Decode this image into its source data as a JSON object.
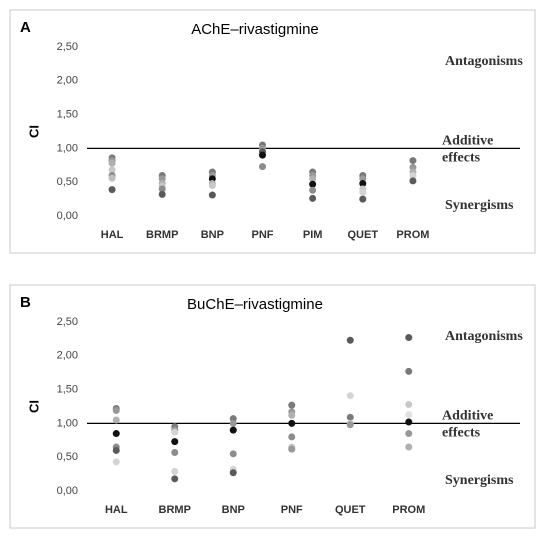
{
  "chart_data": [
    {
      "type": "strip",
      "panel": "A",
      "title": "AChE–rivastigmine",
      "ylabel": "CI",
      "categories": [
        "HAL",
        "BRMP",
        "BNP",
        "PNF",
        "PIM",
        "QUET",
        "PROM"
      ],
      "points": [
        [
          {
            "y": 0.86,
            "color": "#7a7a7a"
          },
          {
            "y": 0.82,
            "color": "#999999"
          },
          {
            "y": 0.78,
            "color": "#b0b0b0"
          },
          {
            "y": 0.68,
            "color": "#c8c8c8"
          },
          {
            "y": 0.6,
            "color": "#8c8c8c"
          },
          {
            "y": 0.56,
            "color": "#bdbdbd"
          },
          {
            "y": 0.39,
            "color": "#5a5a5a"
          }
        ],
        [
          {
            "y": 0.6,
            "color": "#7a7a7a"
          },
          {
            "y": 0.55,
            "color": "#999999"
          },
          {
            "y": 0.48,
            "color": "#b0b0b0"
          },
          {
            "y": 0.44,
            "color": "#c8c8c8"
          },
          {
            "y": 0.4,
            "color": "#8c8c8c"
          },
          {
            "y": 0.32,
            "color": "#5a5a5a"
          }
        ],
        [
          {
            "y": 0.65,
            "color": "#7a7a7a"
          },
          {
            "y": 0.6,
            "color": "#999999"
          },
          {
            "y": 0.55,
            "color": "#111111"
          },
          {
            "y": 0.48,
            "color": "#b0b0b0"
          },
          {
            "y": 0.45,
            "color": "#c8c8c8"
          },
          {
            "y": 0.31,
            "color": "#5a5a5a"
          }
        ],
        [
          {
            "y": 1.05,
            "color": "#7a7a7a"
          },
          {
            "y": 1.0,
            "color": "#999999"
          },
          {
            "y": 0.95,
            "color": "#5a5a5a"
          },
          {
            "y": 0.9,
            "color": "#111111"
          },
          {
            "y": 0.73,
            "color": "#8c8c8c"
          }
        ],
        [
          {
            "y": 0.65,
            "color": "#7a7a7a"
          },
          {
            "y": 0.6,
            "color": "#999999"
          },
          {
            "y": 0.55,
            "color": "#b0b0b0"
          },
          {
            "y": 0.47,
            "color": "#111111"
          },
          {
            "y": 0.38,
            "color": "#8c8c8c"
          },
          {
            "y": 0.26,
            "color": "#5a5a5a"
          }
        ],
        [
          {
            "y": 0.6,
            "color": "#7a7a7a"
          },
          {
            "y": 0.55,
            "color": "#999999"
          },
          {
            "y": 0.48,
            "color": "#111111"
          },
          {
            "y": 0.4,
            "color": "#c8c8c8"
          },
          {
            "y": 0.35,
            "color": "#d4d4d4"
          },
          {
            "y": 0.25,
            "color": "#5a5a5a"
          }
        ],
        [
          {
            "y": 0.82,
            "color": "#7a7a7a"
          },
          {
            "y": 0.72,
            "color": "#999999"
          },
          {
            "y": 0.65,
            "color": "#b0b0b0"
          },
          {
            "y": 0.6,
            "color": "#d4d4d4"
          },
          {
            "y": 0.52,
            "color": "#5a5a5a"
          }
        ]
      ],
      "ylim": [
        0,
        2.5
      ],
      "yticks": [
        {
          "value": 0,
          "label": "0,00"
        },
        {
          "value": 0.5,
          "label": "0,50"
        },
        {
          "value": 1,
          "label": "1,00"
        },
        {
          "value": 1.5,
          "label": "1,50"
        },
        {
          "value": 2,
          "label": "2,00"
        },
        {
          "value": 2.5,
          "label": "2,50"
        }
      ],
      "hline": 1,
      "annotations": [
        "Antagonisms",
        "Additive",
        "effects",
        "Synergisms"
      ]
    },
    {
      "type": "strip",
      "panel": "B",
      "title": "BuChE–rivastigmine",
      "ylabel": "CI",
      "categories": [
        "HAL",
        "BRMP",
        "BNP",
        "PNF",
        "QUET",
        "PROM"
      ],
      "points": [
        [
          {
            "y": 1.22,
            "color": "#7a7a7a"
          },
          {
            "y": 1.19,
            "color": "#999999"
          },
          {
            "y": 1.05,
            "color": "#b0b0b0"
          },
          {
            "y": 0.85,
            "color": "#111111"
          },
          {
            "y": 0.65,
            "color": "#8c8c8c"
          },
          {
            "y": 0.6,
            "color": "#5a5a5a"
          },
          {
            "y": 0.43,
            "color": "#d4d4d4"
          }
        ],
        [
          {
            "y": 0.95,
            "color": "#7a7a7a"
          },
          {
            "y": 0.9,
            "color": "#999999"
          },
          {
            "y": 0.87,
            "color": "#d4d4d4"
          },
          {
            "y": 0.73,
            "color": "#111111"
          },
          {
            "y": 0.57,
            "color": "#8c8c8c"
          },
          {
            "y": 0.29,
            "color": "#d4d4d4"
          },
          {
            "y": 0.18,
            "color": "#5a5a5a"
          }
        ],
        [
          {
            "y": 1.07,
            "color": "#7a7a7a"
          },
          {
            "y": 1.0,
            "color": "#999999"
          },
          {
            "y": 0.9,
            "color": "#111111"
          },
          {
            "y": 0.55,
            "color": "#8c8c8c"
          },
          {
            "y": 0.32,
            "color": "#d4d4d4"
          },
          {
            "y": 0.27,
            "color": "#5a5a5a"
          }
        ],
        [
          {
            "y": 1.27,
            "color": "#7a7a7a"
          },
          {
            "y": 1.17,
            "color": "#999999"
          },
          {
            "y": 1.12,
            "color": "#b0b0b0"
          },
          {
            "y": 1.0,
            "color": "#111111"
          },
          {
            "y": 0.8,
            "color": "#8c8c8c"
          },
          {
            "y": 0.65,
            "color": "#c8c8c8"
          },
          {
            "y": 0.62,
            "color": "#999999"
          }
        ],
        [
          {
            "y": 2.23,
            "color": "#5a5a5a"
          },
          {
            "y": 1.41,
            "color": "#d4d4d4"
          },
          {
            "y": 1.09,
            "color": "#7a7a7a"
          },
          {
            "y": 1.0,
            "color": "#c8c8c8"
          },
          {
            "y": 0.98,
            "color": "#999999"
          }
        ],
        [
          {
            "y": 2.27,
            "color": "#5a5a5a"
          },
          {
            "y": 1.77,
            "color": "#7a7a7a"
          },
          {
            "y": 1.28,
            "color": "#c8c8c8"
          },
          {
            "y": 1.13,
            "color": "#e0e0e0"
          },
          {
            "y": 1.02,
            "color": "#111111"
          },
          {
            "y": 0.85,
            "color": "#999999"
          },
          {
            "y": 0.65,
            "color": "#b0b0b0"
          }
        ]
      ],
      "ylim": [
        0,
        2.5
      ],
      "yticks": [
        {
          "value": 0,
          "label": "0,00"
        },
        {
          "value": 0.5,
          "label": "0,50"
        },
        {
          "value": 1,
          "label": "1,00"
        },
        {
          "value": 1.5,
          "label": "1,50"
        },
        {
          "value": 2,
          "label": "2,00"
        },
        {
          "value": 2.5,
          "label": "2,50"
        }
      ],
      "hline": 1,
      "annotations": [
        "Antagonisms",
        "Additive",
        "effects",
        "Synergisms"
      ]
    }
  ]
}
